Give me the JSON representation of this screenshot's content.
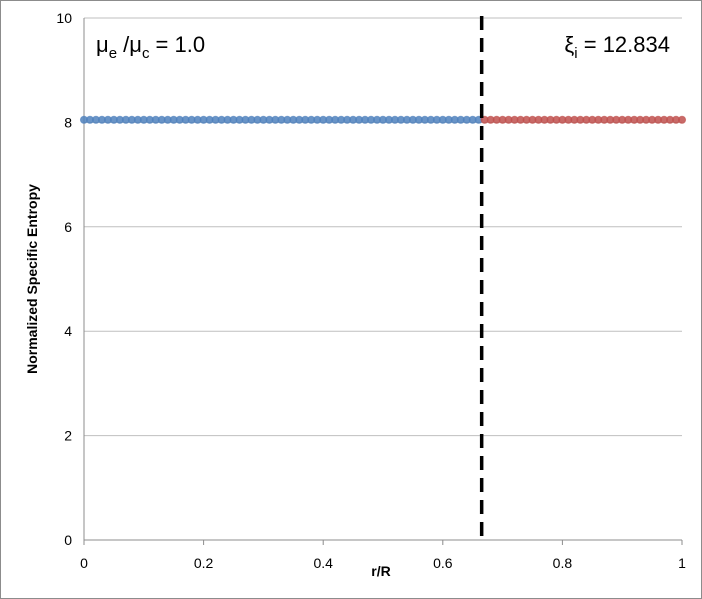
{
  "chart_data": {
    "type": "scatter",
    "xlabel": "r/R",
    "ylabel": "Normalized Specific Entropy",
    "xlim": [
      0,
      1
    ],
    "ylim": [
      0,
      10
    ],
    "xticks": [
      0,
      0.2,
      0.4,
      0.6,
      0.8,
      1
    ],
    "yticks": [
      0,
      2,
      4,
      6,
      8,
      10
    ],
    "grid": true,
    "vline": 0.665,
    "annotations": [
      [
        "μ",
        "e",
        " /μ",
        "c",
        " = 1.0"
      ],
      [
        "ξ",
        "i",
        " = 12.834"
      ]
    ],
    "series": [
      {
        "color": "#4f81bd",
        "x": [
          0,
          0.01,
          0.02,
          0.03,
          0.04,
          0.05,
          0.06,
          0.07,
          0.08,
          0.09,
          0.1,
          0.11,
          0.12,
          0.13,
          0.14,
          0.15,
          0.16,
          0.17,
          0.18,
          0.19,
          0.2,
          0.21,
          0.22,
          0.23,
          0.24,
          0.25,
          0.26,
          0.27,
          0.28,
          0.29,
          0.3,
          0.31,
          0.32,
          0.33,
          0.34,
          0.35,
          0.36,
          0.37,
          0.38,
          0.39,
          0.4,
          0.41,
          0.42,
          0.43,
          0.44,
          0.45,
          0.46,
          0.47,
          0.48,
          0.49,
          0.5,
          0.51,
          0.52,
          0.53,
          0.54,
          0.55,
          0.56,
          0.57,
          0.58,
          0.59,
          0.6,
          0.61,
          0.62,
          0.63,
          0.64,
          0.65,
          0.66
        ],
        "values": [
          8.05,
          8.05,
          8.05,
          8.05,
          8.05,
          8.05,
          8.05,
          8.05,
          8.05,
          8.05,
          8.05,
          8.05,
          8.05,
          8.05,
          8.05,
          8.05,
          8.05,
          8.05,
          8.05,
          8.05,
          8.05,
          8.05,
          8.05,
          8.05,
          8.05,
          8.05,
          8.05,
          8.05,
          8.05,
          8.05,
          8.05,
          8.05,
          8.05,
          8.05,
          8.05,
          8.05,
          8.05,
          8.05,
          8.05,
          8.05,
          8.05,
          8.05,
          8.05,
          8.05,
          8.05,
          8.05,
          8.05,
          8.05,
          8.05,
          8.05,
          8.05,
          8.05,
          8.05,
          8.05,
          8.05,
          8.05,
          8.05,
          8.05,
          8.05,
          8.05,
          8.05,
          8.05,
          8.05,
          8.05,
          8.05,
          8.05,
          8.05
        ]
      },
      {
        "color": "#c0504d",
        "x": [
          0.67,
          0.68,
          0.69,
          0.7,
          0.71,
          0.72,
          0.73,
          0.74,
          0.75,
          0.76,
          0.77,
          0.78,
          0.79,
          0.8,
          0.81,
          0.82,
          0.83,
          0.84,
          0.85,
          0.86,
          0.87,
          0.88,
          0.89,
          0.9,
          0.91,
          0.92,
          0.93,
          0.94,
          0.95,
          0.96,
          0.97,
          0.98,
          0.99,
          1
        ],
        "values": [
          8.05,
          8.05,
          8.05,
          8.05,
          8.05,
          8.05,
          8.05,
          8.05,
          8.05,
          8.05,
          8.05,
          8.05,
          8.05,
          8.05,
          8.05,
          8.05,
          8.05,
          8.05,
          8.05,
          8.05,
          8.05,
          8.05,
          8.05,
          8.05,
          8.05,
          8.05,
          8.05,
          8.05,
          8.05,
          8.05,
          8.05,
          8.05,
          8.05,
          8.05
        ]
      }
    ]
  }
}
